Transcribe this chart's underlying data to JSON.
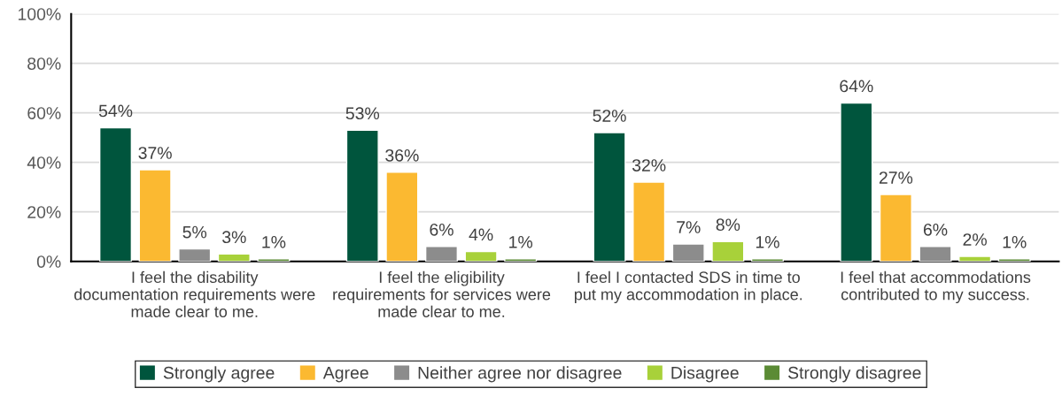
{
  "chart_data": {
    "type": "bar",
    "categories": [
      "I feel the disability documentation requirements were made clear to me.",
      "I feel the eligibility requirements for services were made clear to me.",
      "I feel I contacted SDS in time to put my accommodation in place.",
      "I feel that accommodations contributed to my success."
    ],
    "series": [
      {
        "name": "Strongly agree",
        "color": "#00553d",
        "values": [
          54,
          53,
          52,
          64
        ],
        "value_labels": [
          "54%",
          "53%",
          "52%",
          "64%"
        ]
      },
      {
        "name": "Agree",
        "color": "#fbb931",
        "values": [
          37,
          36,
          32,
          27
        ],
        "value_labels": [
          "37%",
          "36%",
          "32%",
          "27%"
        ]
      },
      {
        "name": "Neither agree nor disagree",
        "color": "#8c8c8c",
        "values": [
          5,
          6,
          7,
          6
        ],
        "value_labels": [
          "5%",
          "6%",
          "7%",
          "6%"
        ]
      },
      {
        "name": "Disagree",
        "color": "#a8d13a",
        "values": [
          3,
          4,
          8,
          2
        ],
        "value_labels": [
          "3%",
          "4%",
          "8%",
          "2%"
        ]
      },
      {
        "name": "Strongly disagree",
        "color": "#5b8b35",
        "values": [
          1,
          1,
          1,
          1
        ],
        "value_labels": [
          "1%",
          "1%",
          "1%",
          "1%"
        ]
      }
    ],
    "ylim": [
      0,
      100
    ],
    "yticks": [
      {
        "value": 0,
        "label": "0%"
      },
      {
        "value": 20,
        "label": "20%"
      },
      {
        "value": 40,
        "label": "40%"
      },
      {
        "value": 60,
        "label": "60%"
      },
      {
        "value": 80,
        "label": "80%"
      },
      {
        "value": 100,
        "label": "100%"
      }
    ],
    "grid": "y",
    "legend": "bottom"
  }
}
